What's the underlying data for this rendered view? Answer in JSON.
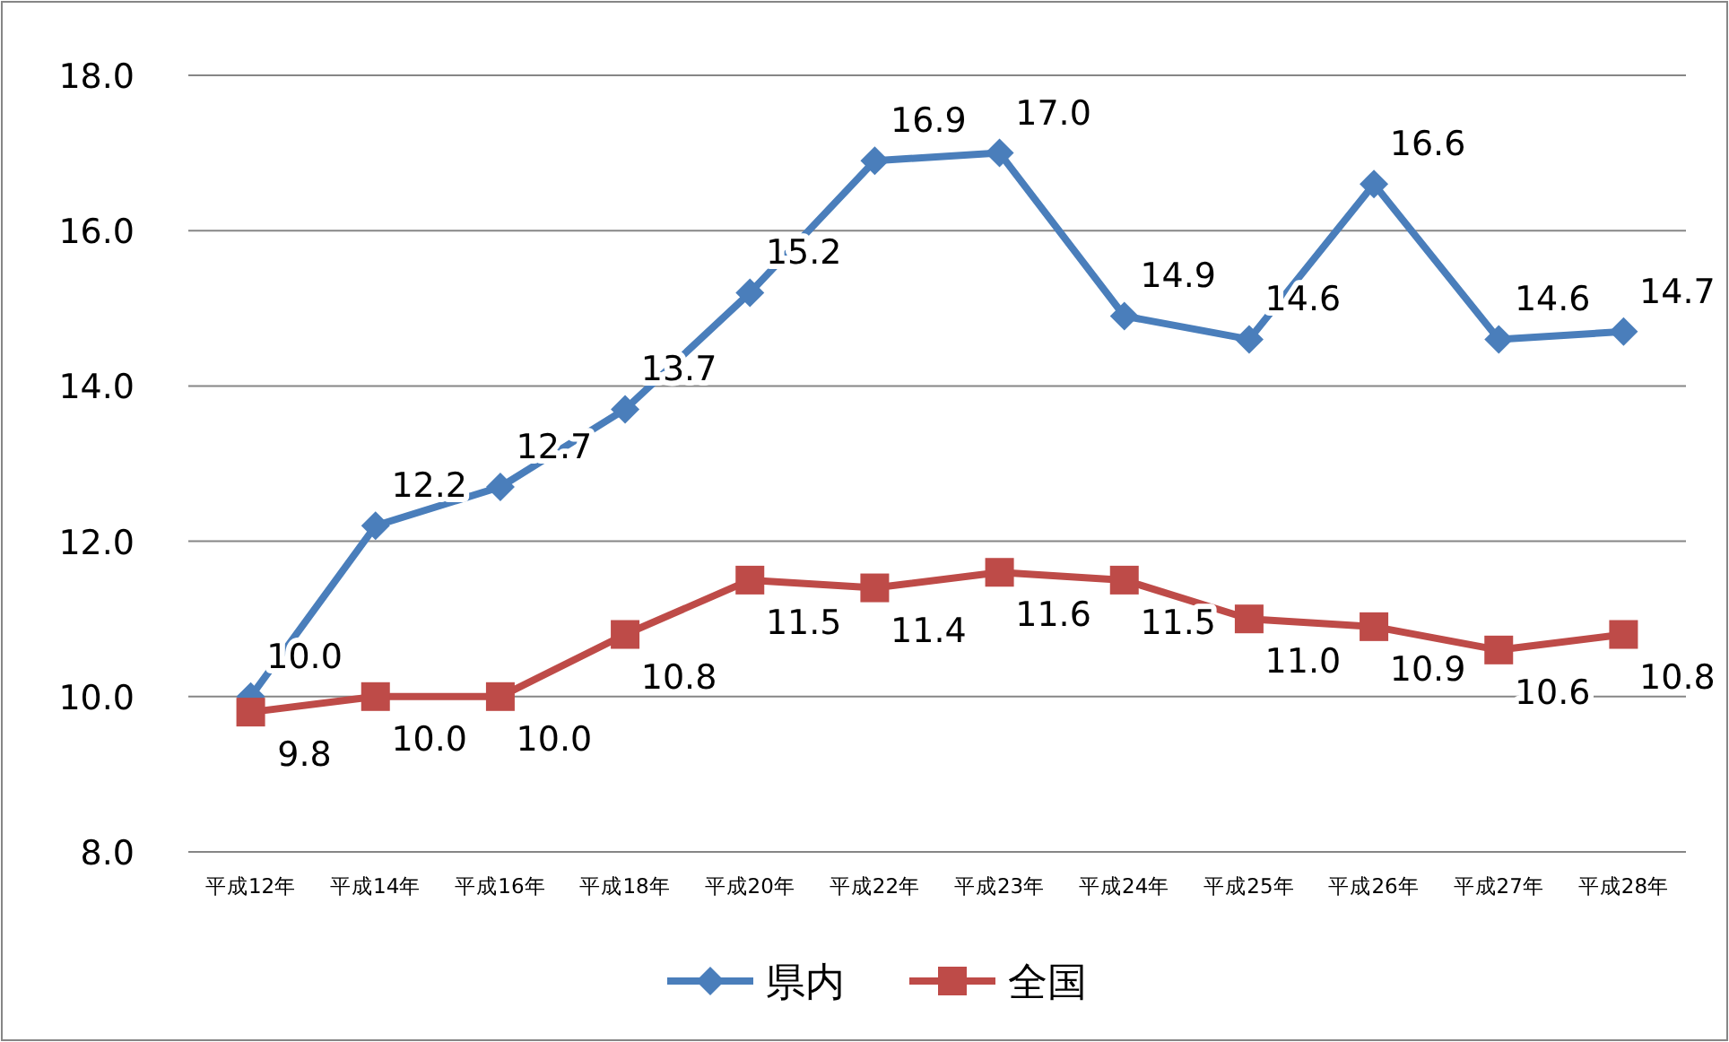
{
  "chart_data": {
    "type": "line",
    "categories": [
      "平成12年",
      "平成14年",
      "平成16年",
      "平成18年",
      "平成20年",
      "平成22年",
      "平成23年",
      "平成24年",
      "平成25年",
      "平成26年",
      "平成27年",
      "平成28年"
    ],
    "series": [
      {
        "name": "県内",
        "color": "#4a7ebb",
        "marker": "diamond",
        "values": [
          10.0,
          12.2,
          12.7,
          13.7,
          15.2,
          16.9,
          17.0,
          14.9,
          14.6,
          16.6,
          14.6,
          14.7
        ],
        "value_labels": [
          "10.0",
          "12.2",
          "12.7",
          "13.7",
          "15.2",
          "16.9",
          "17.0",
          "14.9",
          "14.6",
          "16.6",
          "14.6",
          "14.7"
        ]
      },
      {
        "name": "全国",
        "color": "#be4b48",
        "marker": "square",
        "values": [
          9.8,
          10.0,
          10.0,
          10.8,
          11.5,
          11.4,
          11.6,
          11.5,
          11.0,
          10.9,
          10.6,
          10.8
        ],
        "value_labels": [
          "9.8",
          "10.0",
          "10.0",
          "10.8",
          "11.5",
          "11.4",
          "11.6",
          "11.5",
          "11.0",
          "10.9",
          "10.6",
          "10.8"
        ]
      }
    ],
    "ylim": [
      8,
      18
    ],
    "yticks": [
      {
        "value": 8,
        "label": "8.0"
      },
      {
        "value": 10,
        "label": "10.0"
      },
      {
        "value": 12,
        "label": "12.0"
      },
      {
        "value": 14,
        "label": "14.0"
      },
      {
        "value": 16,
        "label": "16.0"
      },
      {
        "value": 18,
        "label": "18.0"
      }
    ],
    "grid": "y",
    "legend": "bottom",
    "line_style": "solid"
  }
}
